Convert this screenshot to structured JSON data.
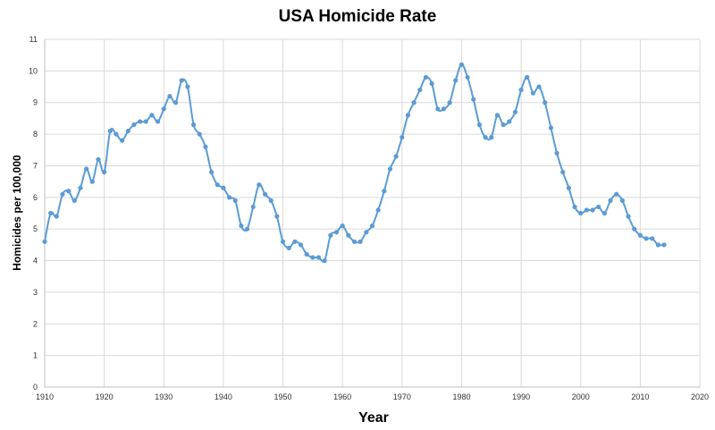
{
  "chart_data": {
    "type": "line",
    "title": "USA Homicide Rate",
    "xlabel": "Year",
    "ylabel": "Homicides per 100,000",
    "xlim": [
      1910,
      2020
    ],
    "ylim": [
      0,
      11
    ],
    "x_ticks": [
      1910,
      1920,
      1930,
      1940,
      1950,
      1960,
      1970,
      1980,
      1990,
      2000,
      2010,
      2020
    ],
    "y_ticks": [
      0,
      1,
      2,
      3,
      4,
      5,
      6,
      7,
      8,
      9,
      10,
      11
    ],
    "grid": true,
    "legend": "none",
    "colors": {
      "series": "#5b9bd5"
    },
    "series": [
      {
        "x": [
          1910,
          1911,
          1912,
          1913,
          1914,
          1915,
          1916,
          1917,
          1918,
          1919,
          1920,
          1921,
          1922,
          1923,
          1924,
          1925,
          1926,
          1927,
          1928,
          1929,
          1930,
          1931,
          1932,
          1933,
          1934,
          1935,
          1936,
          1937,
          1938,
          1939,
          1940,
          1941,
          1942,
          1943,
          1944,
          1945,
          1946,
          1947,
          1948,
          1949,
          1950,
          1951,
          1952,
          1953,
          1954,
          1955,
          1956,
          1957,
          1958,
          1959,
          1960,
          1961,
          1962,
          1963,
          1964,
          1965,
          1966,
          1967,
          1968,
          1969,
          1970,
          1971,
          1972,
          1973,
          1974,
          1975,
          1976,
          1977,
          1978,
          1979,
          1980,
          1981,
          1982,
          1983,
          1984,
          1985,
          1986,
          1987,
          1988,
          1989,
          1990,
          1991,
          1992,
          1993,
          1994,
          1995,
          1996,
          1997,
          1998,
          1999,
          2000,
          2001,
          2002,
          2003,
          2004,
          2005,
          2006,
          2007,
          2008,
          2009,
          2010,
          2011,
          2012,
          2013,
          2014
        ],
        "y": [
          4.6,
          5.5,
          5.4,
          6.1,
          6.2,
          5.9,
          6.3,
          6.9,
          6.5,
          7.2,
          6.8,
          8.1,
          8.0,
          7.8,
          8.1,
          8.3,
          8.4,
          8.4,
          8.6,
          8.4,
          8.8,
          9.2,
          9.0,
          9.7,
          9.5,
          8.3,
          8.0,
          7.6,
          6.8,
          6.4,
          6.3,
          6.0,
          5.9,
          5.1,
          5.0,
          5.7,
          6.4,
          6.1,
          5.9,
          5.4,
          4.6,
          4.4,
          4.6,
          4.5,
          4.2,
          4.1,
          4.1,
          4.0,
          4.8,
          4.9,
          5.1,
          4.8,
          4.6,
          4.6,
          4.9,
          5.1,
          5.6,
          6.2,
          6.9,
          7.3,
          7.9,
          8.6,
          9.0,
          9.4,
          9.8,
          9.6,
          8.8,
          8.8,
          9.0,
          9.7,
          10.2,
          9.8,
          9.1,
          8.3,
          7.9,
          7.9,
          8.6,
          8.3,
          8.4,
          8.7,
          9.4,
          9.8,
          9.3,
          9.5,
          9.0,
          8.2,
          7.4,
          6.8,
          6.3,
          5.7,
          5.5,
          5.6,
          5.6,
          5.7,
          5.5,
          5.9,
          6.1,
          5.9,
          5.4,
          5.0,
          4.8,
          4.7,
          4.7,
          4.5,
          4.5
        ]
      }
    ]
  }
}
